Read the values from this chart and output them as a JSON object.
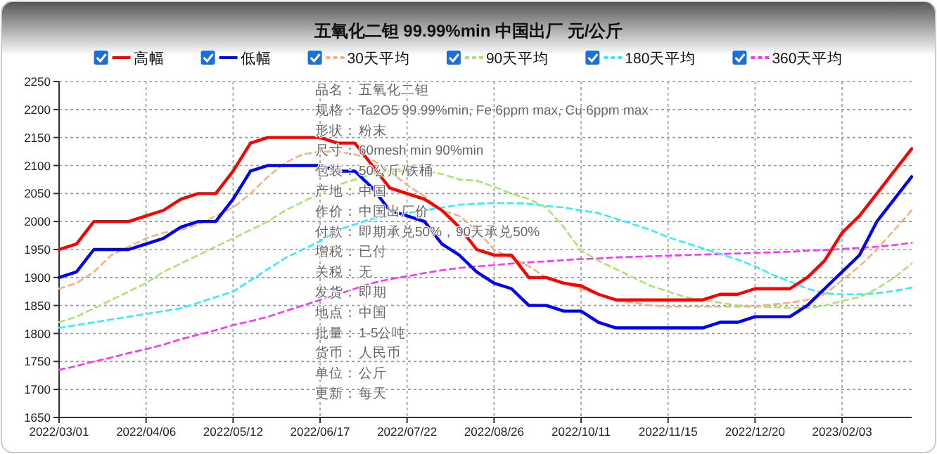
{
  "chart_data": {
    "type": "line",
    "title": "五氧化二钽 99.99%min 中国出厂 元/公斤",
    "categories": [
      "2022/03/01",
      null,
      null,
      null,
      null,
      "2022/04/06",
      null,
      null,
      null,
      null,
      "2022/05/12",
      null,
      null,
      null,
      null,
      "2022/06/17",
      null,
      null,
      null,
      null,
      "2022/07/22",
      null,
      null,
      null,
      null,
      "2022/08/26",
      null,
      null,
      null,
      null,
      "2022/10/11",
      null,
      null,
      null,
      null,
      "2022/11/15",
      null,
      null,
      null,
      null,
      "2022/12/20",
      null,
      null,
      null,
      null,
      "2023/02/03",
      null,
      null,
      null,
      null
    ],
    "series": [
      {
        "name": "高幅",
        "color": "#ff0000",
        "line_style": "solid",
        "values": [
          1950,
          1960,
          2000,
          2000,
          2000,
          2010,
          2020,
          2040,
          2050,
          2050,
          2090,
          2140,
          2150,
          2150,
          2150,
          2150,
          2140,
          2140,
          2100,
          2060,
          2050,
          2040,
          2020,
          1990,
          1950,
          1940,
          1940,
          1900,
          1900,
          1890,
          1885,
          1870,
          1860,
          1860,
          1860,
          1860,
          1860,
          1860,
          1870,
          1870,
          1880,
          1880,
          1880,
          1900,
          1930,
          1980,
          2010,
          2050,
          2090,
          2130
        ]
      },
      {
        "name": "低幅",
        "color": "#0000ff",
        "line_style": "solid",
        "values": [
          1900,
          1910,
          1950,
          1950,
          1950,
          1960,
          1970,
          1990,
          2000,
          2000,
          2040,
          2090,
          2100,
          2100,
          2100,
          2100,
          2090,
          2090,
          2060,
          2020,
          2010,
          2000,
          1960,
          1940,
          1910,
          1890,
          1880,
          1850,
          1850,
          1840,
          1840,
          1820,
          1810,
          1810,
          1810,
          1810,
          1810,
          1810,
          1820,
          1820,
          1830,
          1830,
          1830,
          1850,
          1880,
          1910,
          1940,
          2000,
          2040,
          2080
        ]
      },
      {
        "name": "30天平均",
        "color": "#f4b183",
        "line_style": "dashed",
        "values": [
          1880,
          1890,
          1910,
          1940,
          1955,
          1970,
          1980,
          1985,
          1995,
          2010,
          2025,
          2050,
          2080,
          2105,
          2120,
          2125,
          2125,
          2120,
          2110,
          2090,
          2065,
          2045,
          2020,
          2010,
          1985,
          1950,
          1935,
          1920,
          1900,
          1890,
          1880,
          1870,
          1860,
          1855,
          1850,
          1848,
          1848,
          1848,
          1848,
          1848,
          1848,
          1852,
          1855,
          1860,
          1870,
          1895,
          1920,
          1950,
          1985,
          2020
        ]
      },
      {
        "name": "90天平均",
        "color": "#a9e66f",
        "line_style": "dashed",
        "values": [
          1820,
          1830,
          1845,
          1860,
          1875,
          1890,
          1910,
          1925,
          1940,
          1955,
          1970,
          1985,
          2000,
          2020,
          2035,
          2050,
          2065,
          2075,
          2085,
          2090,
          2090,
          2090,
          2085,
          2075,
          2073,
          2062,
          2050,
          2040,
          2025,
          1990,
          1948,
          1930,
          1915,
          1900,
          1885,
          1875,
          1865,
          1860,
          1855,
          1850,
          1848,
          1847,
          1846,
          1845,
          1850,
          1858,
          1865,
          1880,
          1900,
          1925
        ]
      },
      {
        "name": "180天平均",
        "color": "#33eeff",
        "line_style": "dashed",
        "values": [
          1810,
          1815,
          1820,
          1825,
          1830,
          1835,
          1840,
          1845,
          1855,
          1865,
          1875,
          1895,
          1915,
          1935,
          1950,
          1965,
          1985,
          1995,
          2005,
          2010,
          2015,
          2020,
          2025,
          2030,
          2032,
          2033,
          2033,
          2032,
          2028,
          2025,
          2020,
          2015,
          2005,
          1995,
          1985,
          1972,
          1962,
          1952,
          1942,
          1932,
          1920,
          1905,
          1893,
          1880,
          1872,
          1870,
          1870,
          1872,
          1876,
          1882
        ]
      },
      {
        "name": "360天平均",
        "color": "#ff33ff",
        "line_style": "dashed",
        "values": [
          1735,
          1742,
          1750,
          1757,
          1765,
          1772,
          1780,
          1790,
          1798,
          1806,
          1815,
          1822,
          1830,
          1840,
          1850,
          1860,
          1870,
          1880,
          1890,
          1897,
          1902,
          1908,
          1913,
          1917,
          1920,
          1922,
          1925,
          1927,
          1929,
          1931,
          1933,
          1934,
          1936,
          1937,
          1938,
          1939,
          1940,
          1941,
          1942,
          1943,
          1944,
          1945,
          1946,
          1948,
          1949,
          1951,
          1953,
          1955,
          1958,
          1962
        ]
      }
    ],
    "ylim": [
      1650,
      2250
    ],
    "yticks": [
      1650,
      1700,
      1750,
      1800,
      1850,
      1900,
      1950,
      2000,
      2050,
      2100,
      2150,
      2200,
      2250
    ],
    "grid": true,
    "legend": "top",
    "marker": "none",
    "annotations": [
      "品名：五氧化二钽",
      "规格：Ta2O5 99.99%min, Fe 6ppm max, Cu 6ppm max",
      "形状：粉末",
      "尺寸：60mesh min 90%min",
      "包装：50公斤/铁桶",
      "产地：中国",
      "作价：中国出厂价",
      "付款：即期承兑50%，90天承兑50%",
      "增税：已付",
      "关税：无",
      "发货：即期",
      "地点：中国",
      "批量：1-5公吨",
      "货币：人民币",
      "单位：公斤",
      "更新：每天"
    ]
  }
}
